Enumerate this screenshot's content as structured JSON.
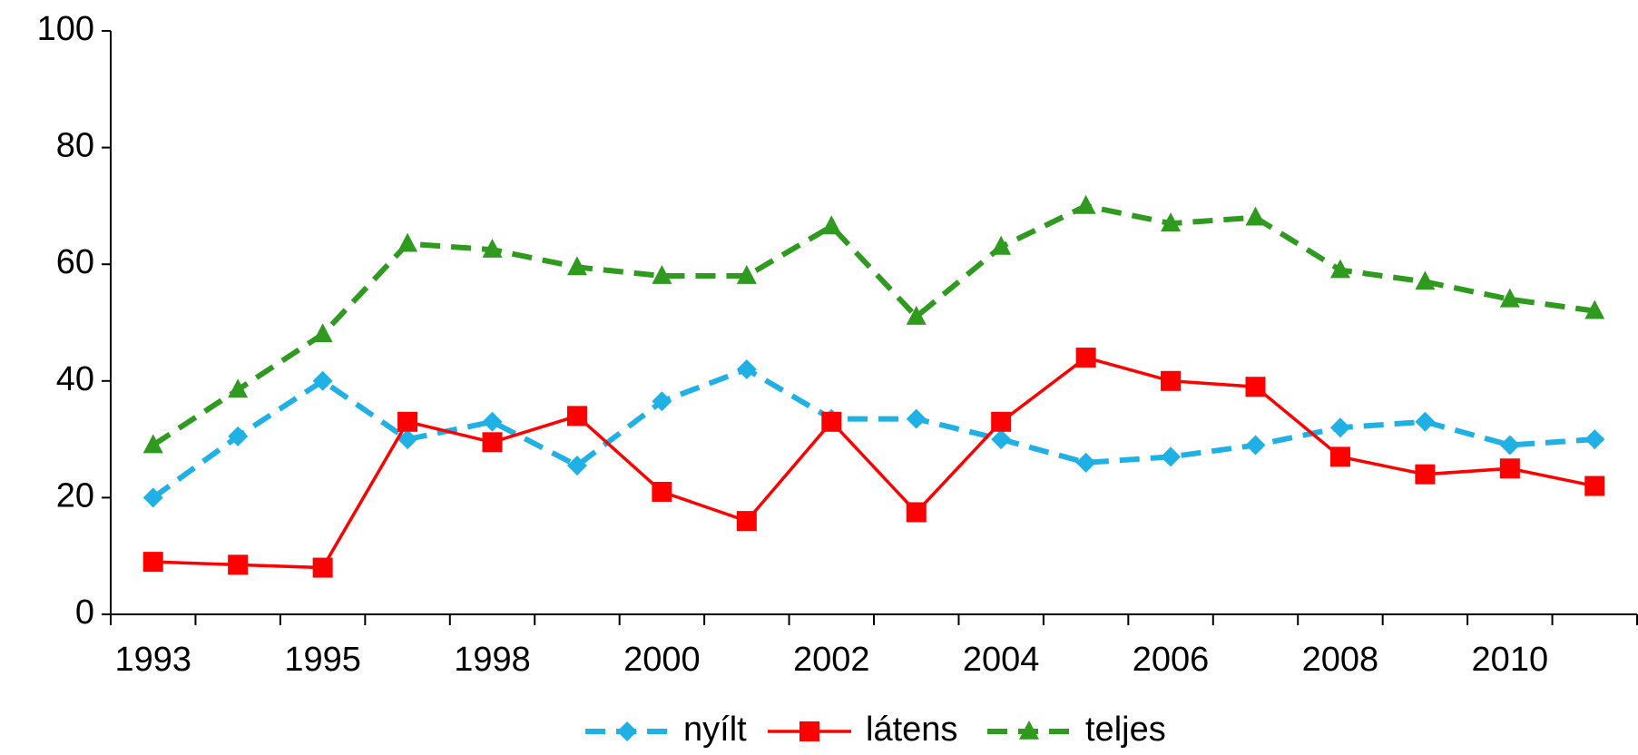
{
  "chart_data": {
    "type": "line",
    "categories": [
      "1993",
      null,
      "1995",
      null,
      "1998",
      null,
      "2000",
      null,
      "2002",
      null,
      "2004",
      null,
      "2006",
      null,
      "2008",
      null,
      "2010",
      null
    ],
    "series": [
      {
        "name": "nyílt",
        "color": "#1fb1e6",
        "dash": true,
        "marker": "diamond",
        "values": [
          20,
          30.5,
          40,
          30,
          33,
          25.5,
          36.5,
          42,
          33.5,
          33.5,
          30,
          26,
          27,
          29,
          32,
          33,
          29,
          30
        ]
      },
      {
        "name": "látens",
        "color": "#ff0000",
        "dash": false,
        "marker": "square",
        "values": [
          9,
          8.5,
          8,
          33,
          29.5,
          34,
          21,
          16,
          33,
          17.5,
          33,
          44,
          40,
          39,
          27,
          24,
          25,
          22
        ]
      },
      {
        "name": "teljes",
        "color": "#2e9a1e",
        "dash": true,
        "marker": "triangle",
        "values": [
          29,
          38.5,
          48,
          63.5,
          62.5,
          59.5,
          58,
          58,
          66.5,
          51,
          63,
          70,
          67,
          68,
          59,
          57,
          54,
          52
        ]
      }
    ],
    "ylim": [
      0,
      100
    ],
    "yticks": [
      0,
      20,
      40,
      60,
      80,
      100
    ],
    "legend": "bottom"
  }
}
